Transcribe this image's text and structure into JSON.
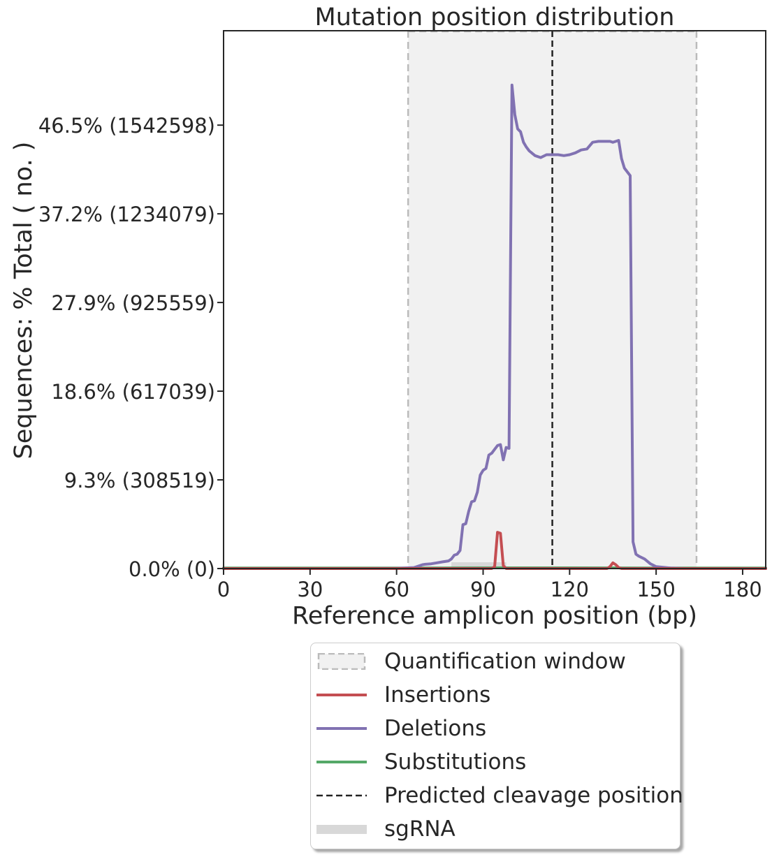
{
  "chart_data": {
    "type": "line",
    "title": "Mutation position distribution",
    "xlabel": "Reference amplicon position (bp)",
    "ylabel": "Sequences: % Total ( no. )",
    "xlim": [
      0,
      188
    ],
    "ylim": [
      0,
      56.4
    ],
    "xticks": [
      0,
      30,
      60,
      90,
      120,
      150,
      180
    ],
    "xtick_labels": [
      "0",
      "30",
      "60",
      "90",
      "120",
      "150",
      "180"
    ],
    "yticks": [
      0,
      9.3,
      18.6,
      27.9,
      37.2,
      46.5
    ],
    "ytick_labels": [
      "0.0% (0)",
      "9.3% (308519)",
      "18.6% (617039)",
      "27.9% (925559)",
      "37.2% (1234079)",
      "46.5% (1542598)"
    ],
    "quantification_window": [
      64,
      164
    ],
    "predicted_cleavage_position": 114,
    "sgRNA": [
      79,
      98
    ],
    "legend_position": "below",
    "colors": {
      "insertions": "#c44e52",
      "deletions": "#8172b2",
      "substitutions": "#55a868",
      "window_fill": "#f1f1f1",
      "window_edge": "#bbbbbb",
      "cleavage": "#222222",
      "sgrna": "#d8d8d8"
    },
    "series": [
      {
        "name": "Insertions",
        "x": [
          0,
          93,
          94,
          95,
          96,
          97,
          98,
          99,
          133,
          134,
          135,
          136,
          137,
          138,
          188
        ],
        "y": [
          0,
          0,
          0.2,
          3.8,
          3.7,
          0.3,
          0,
          0,
          0,
          0.2,
          0.6,
          0.4,
          0.1,
          0,
          0
        ]
      },
      {
        "name": "Deletions",
        "x": [
          0,
          50,
          60,
          66,
          67,
          68,
          69,
          70,
          72,
          74,
          76,
          78,
          79,
          80,
          81,
          82,
          83,
          84,
          85,
          86,
          87,
          88,
          89,
          90,
          91,
          92,
          93,
          94,
          95,
          96,
          97,
          98,
          99,
          100,
          101,
          102,
          103,
          104,
          105,
          106,
          108,
          110,
          112,
          114,
          116,
          118,
          120,
          122,
          124,
          126,
          128,
          130,
          132,
          134,
          135,
          136,
          137,
          138,
          139,
          140,
          141,
          142,
          143,
          144,
          146,
          148,
          150,
          155,
          160,
          170,
          188
        ],
        "y": [
          0,
          0,
          0.02,
          0.1,
          0.2,
          0.3,
          0.4,
          0.45,
          0.5,
          0.6,
          0.7,
          0.8,
          1.0,
          1.4,
          1.5,
          1.9,
          4.6,
          4.7,
          6.0,
          7.0,
          7.1,
          8.0,
          9.8,
          10.3,
          10.5,
          11.9,
          12.1,
          12.5,
          12.9,
          13.0,
          11.4,
          12.7,
          12.6,
          50.7,
          47.6,
          46.1,
          45.8,
          44.7,
          44.2,
          43.8,
          43.3,
          43.1,
          43.4,
          43.4,
          43.4,
          43.3,
          43.4,
          43.6,
          43.9,
          44.0,
          44.7,
          44.8,
          44.8,
          44.8,
          44.7,
          44.8,
          44.9,
          43.0,
          42.0,
          41.6,
          41.2,
          2.8,
          1.5,
          1.3,
          1.0,
          0.5,
          0.2,
          0.05,
          0,
          0,
          0
        ]
      },
      {
        "name": "Substitutions",
        "x": [
          0,
          60,
          90,
          120,
          150,
          188
        ],
        "y": [
          0.05,
          0.05,
          0.07,
          0.07,
          0.05,
          0.05
        ]
      }
    ],
    "legend_entries": [
      "Quantification window",
      "Insertions",
      "Deletions",
      "Substitutions",
      "Predicted cleavage position",
      "sgRNA"
    ]
  }
}
